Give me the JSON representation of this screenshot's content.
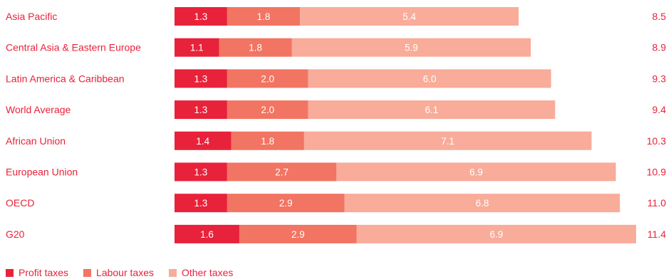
{
  "chart_data": {
    "type": "bar",
    "orientation": "horizontal",
    "stacked": true,
    "categories": [
      "Asia Pacific",
      "Central Asia & Eastern Europe",
      "Latin America & Caribbean",
      "World Average",
      "African Union",
      "European Union",
      "OECD",
      "G20"
    ],
    "series": [
      {
        "name": "Profit taxes",
        "color": "#e8223a",
        "values": [
          1.3,
          1.1,
          1.3,
          1.3,
          1.4,
          1.3,
          1.3,
          1.6
        ]
      },
      {
        "name": "Labour taxes",
        "color": "#f27462",
        "values": [
          1.8,
          1.8,
          2.0,
          2.0,
          1.8,
          2.7,
          2.9,
          2.9
        ]
      },
      {
        "name": "Other taxes",
        "color": "#f8ac99",
        "values": [
          5.4,
          5.9,
          6.0,
          6.1,
          7.1,
          6.9,
          6.8,
          6.9
        ]
      }
    ],
    "segment_labels": [
      [
        "1.3",
        "1.8",
        "5.4"
      ],
      [
        "1.1",
        "1.8",
        "5.9"
      ],
      [
        "1.3",
        "2.0",
        "6.0"
      ],
      [
        "1.3",
        "2.0",
        "6.1"
      ],
      [
        "1.4",
        "1.8",
        "7.1"
      ],
      [
        "1.3",
        "2.7",
        "6.9"
      ],
      [
        "1.3",
        "2.9",
        "6.8"
      ],
      [
        "1.6",
        "2.9",
        "6.9"
      ]
    ],
    "totals": [
      "8.5",
      "8.9",
      "9.3",
      "9.4",
      "10.3",
      "10.9",
      "11.0",
      "11.4"
    ],
    "xlim": [
      0,
      11.4
    ],
    "grid": false,
    "legend_position": "bottom-left",
    "title": "",
    "xlabel": "",
    "ylabel": ""
  },
  "colors": {
    "text": "#e8223a",
    "background": "#ffffff"
  }
}
